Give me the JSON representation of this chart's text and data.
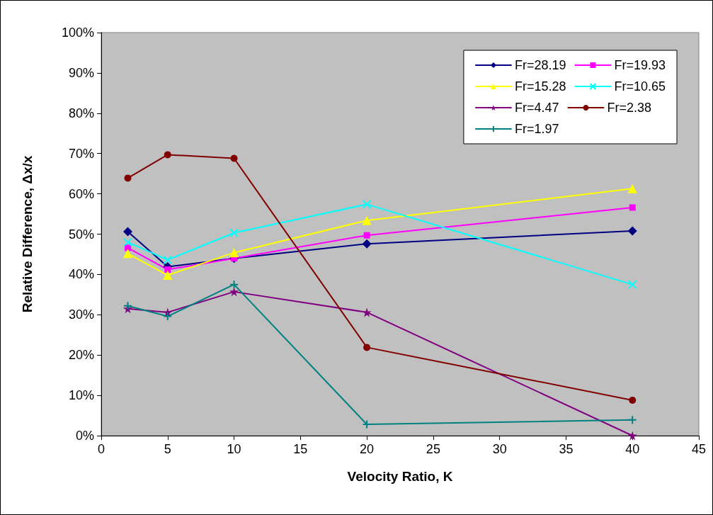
{
  "chart_data": {
    "type": "line",
    "xlabel": "Velocity Ratio, K",
    "ylabel": "Relative Difference, Δx/x",
    "x": [
      2,
      5,
      10,
      20,
      40
    ],
    "xlim": [
      0,
      45
    ],
    "xticks": [
      0,
      5,
      10,
      15,
      20,
      25,
      30,
      35,
      40,
      45
    ],
    "ylim": [
      0,
      100
    ],
    "yticks": [
      {
        "value": 0,
        "label": "0%"
      },
      {
        "value": 10,
        "label": "10%"
      },
      {
        "value": 20,
        "label": "20%"
      },
      {
        "value": 30,
        "label": "30%"
      },
      {
        "value": 40,
        "label": "40%"
      },
      {
        "value": 50,
        "label": "50%"
      },
      {
        "value": 60,
        "label": "60%"
      },
      {
        "value": 70,
        "label": "70%"
      },
      {
        "value": 80,
        "label": "80%"
      },
      {
        "value": 90,
        "label": "90%"
      },
      {
        "value": 100,
        "label": "100%"
      }
    ],
    "grid": false,
    "legend": "top right",
    "line_style": "solid",
    "series": [
      {
        "name": "Fr=28.19",
        "color": "#000080",
        "marker": "diamond",
        "values": [
          50.6,
          41.9,
          44.0,
          47.6,
          50.8
        ]
      },
      {
        "name": "Fr=19.93",
        "color": "#ff00ff",
        "marker": "square",
        "values": [
          46.6,
          41.2,
          44.0,
          49.7,
          56.6
        ]
      },
      {
        "name": "Fr=15.28",
        "color": "#ffff00",
        "marker": "triangle",
        "values": [
          45.2,
          39.8,
          45.4,
          53.4,
          61.3
        ]
      },
      {
        "name": "Fr=10.65",
        "color": "#00ffff",
        "marker": "cross",
        "values": [
          48.0,
          43.6,
          50.3,
          57.4,
          37.5
        ]
      },
      {
        "name": "Fr=4.47",
        "color": "#800080",
        "marker": "star",
        "values": [
          31.5,
          30.6,
          35.7,
          30.6,
          0
        ]
      },
      {
        "name": "Fr=2.38",
        "color": "#800000",
        "marker": "circle",
        "values": [
          63.9,
          69.7,
          68.8,
          21.9,
          8.8
        ]
      },
      {
        "name": "Fr=1.97",
        "color": "#008080",
        "marker": "plus",
        "values": [
          32.2,
          29.6,
          37.5,
          2.8,
          3.9
        ]
      }
    ]
  }
}
